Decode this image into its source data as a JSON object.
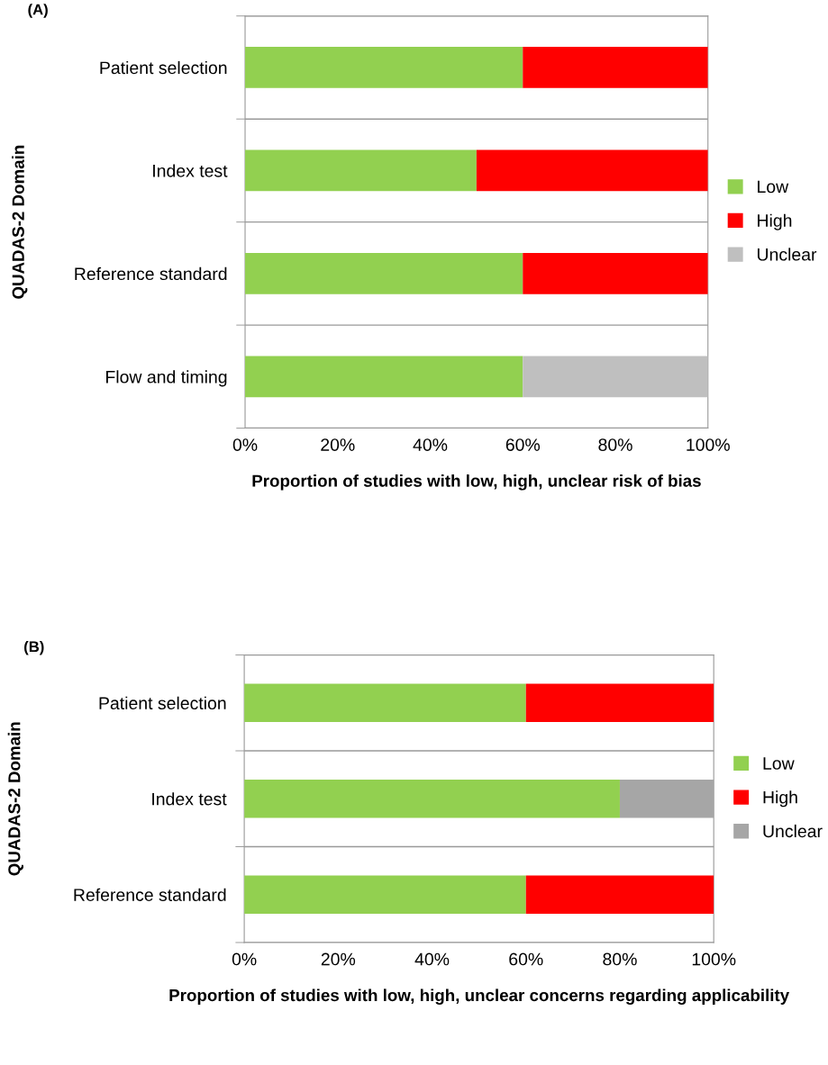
{
  "chart_data": [
    {
      "type": "bar",
      "title": "(A)",
      "orientation": "horizontal",
      "stacked": true,
      "xlabel": "Proportion of studies with low, high, unclear risk of bias",
      "ylabel": "QUADAS-2 Domain",
      "categories": [
        "Patient selection",
        "Index test",
        "Reference standard",
        "Flow and timing"
      ],
      "series": [
        {
          "name": "Low",
          "color": "#92d050",
          "values": [
            60,
            50,
            60,
            60
          ]
        },
        {
          "name": "High",
          "color": "#ff0000",
          "values": [
            40,
            50,
            40,
            0
          ]
        },
        {
          "name": "Unclear",
          "color": "#bfbfbf",
          "values": [
            0,
            0,
            0,
            40
          ]
        }
      ],
      "xlim": [
        0,
        100
      ],
      "xticks": [
        {
          "value": 0,
          "label": "0%"
        },
        {
          "value": 20,
          "label": "20%"
        },
        {
          "value": 40,
          "label": "40%"
        },
        {
          "value": 60,
          "label": "60%"
        },
        {
          "value": 80,
          "label": "80%"
        },
        {
          "value": 100,
          "label": "100%"
        }
      ],
      "grid": "y",
      "legend": "right"
    },
    {
      "type": "bar",
      "title": "(B)",
      "orientation": "horizontal",
      "stacked": true,
      "xlabel": "Proportion of studies with low, high, unclear concerns regarding applicability",
      "ylabel": "QUADAS-2 Domain",
      "categories": [
        "Patient selection",
        "Index test",
        "Reference standard"
      ],
      "series": [
        {
          "name": "Low",
          "color": "#92d050",
          "values": [
            60,
            80,
            60
          ]
        },
        {
          "name": "High",
          "color": "#ff0000",
          "values": [
            40,
            0,
            40
          ]
        },
        {
          "name": "Unclear",
          "color": "#a6a6a6",
          "values": [
            0,
            20,
            0
          ]
        }
      ],
      "xlim": [
        0,
        100
      ],
      "xticks": [
        {
          "value": 0,
          "label": "0%"
        },
        {
          "value": 20,
          "label": "20%"
        },
        {
          "value": 40,
          "label": "40%"
        },
        {
          "value": 60,
          "label": "60%"
        },
        {
          "value": 80,
          "label": "80%"
        },
        {
          "value": 100,
          "label": "100%"
        }
      ],
      "grid": "y",
      "legend": "right"
    }
  ]
}
